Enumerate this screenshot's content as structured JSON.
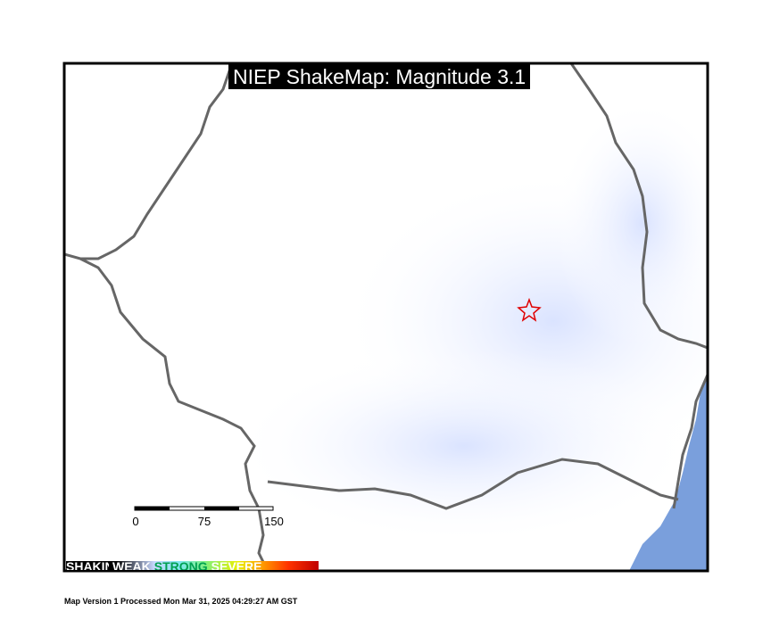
{
  "title": "NIEP ShakeMap: Magnitude 3.1",
  "scale_bar": {
    "labels": [
      "0",
      "75",
      "150"
    ]
  },
  "legend": {
    "labels": [
      "SHAKING",
      "WEAK",
      "STRONG",
      "SEVERE"
    ]
  },
  "footer": "Map Version 1 Processed Mon Mar 31, 2025 04:29:27 AM GST",
  "colors": {
    "border": "#666666",
    "sea": "#7a9fdc",
    "shaking_tint": "#d6e0ff",
    "epicenter": "#e00000"
  },
  "icons": {
    "epicenter": "star-outline"
  }
}
